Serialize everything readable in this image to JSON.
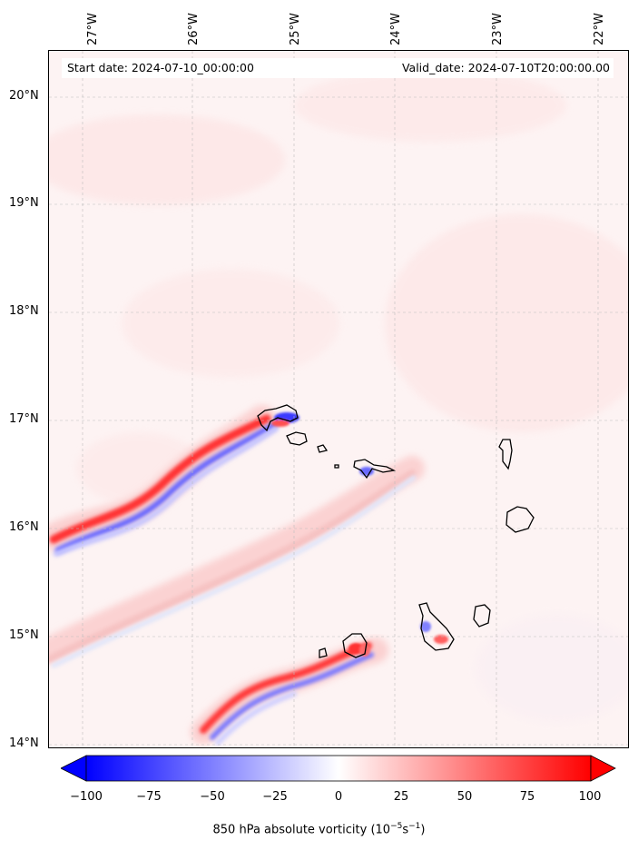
{
  "header": {
    "start_date": "Start date: 2024-07-10_00:00:00",
    "valid_date": "Valid_date: 2024-07-10T20:00:00.00"
  },
  "axes": {
    "longitude_labels": [
      "27°W",
      "26°W",
      "25°W",
      "24°W",
      "23°W",
      "22°W"
    ],
    "latitude_labels": [
      "20°N",
      "19°N",
      "18°N",
      "17°N",
      "16°N",
      "15°N",
      "14°N"
    ],
    "grid": true
  },
  "colorbar": {
    "ticks": [
      "−100",
      "−75",
      "−50",
      "−25",
      "0",
      "25",
      "50",
      "75",
      "100"
    ],
    "label_prefix": "850 hPa absolute vorticity (10",
    "label_exp1": "−5",
    "label_mid": "s",
    "label_exp2": "−1",
    "label_suffix": ")",
    "range": [
      -100,
      100
    ],
    "colormap": "bwr",
    "extend": "both"
  },
  "colors": {
    "positive": "#ff0000",
    "negative": "#0000ff",
    "neutral": "#ffffff",
    "coastline": "#000000"
  }
}
